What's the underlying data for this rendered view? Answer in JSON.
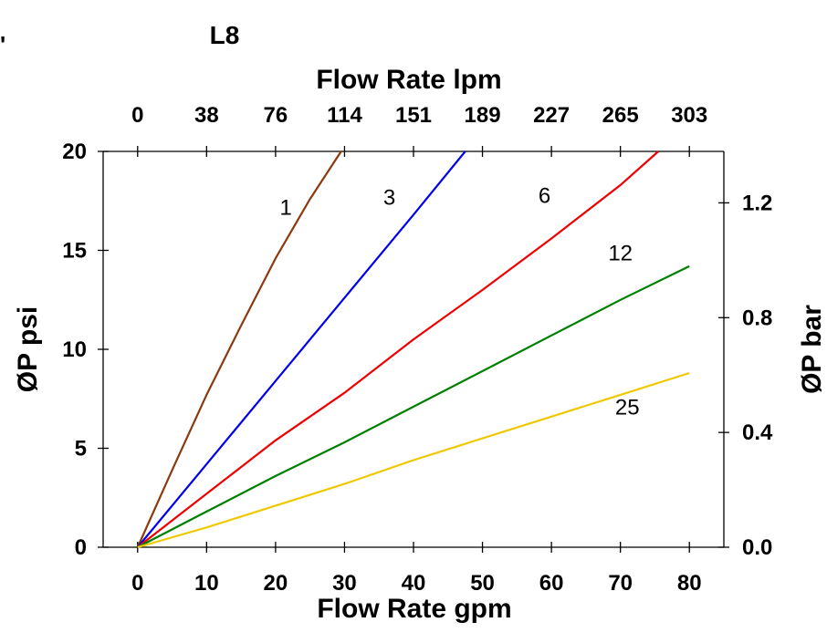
{
  "chart_data": {
    "type": "line",
    "title": "L8",
    "xlabel": "Flow Rate gpm",
    "x2label": "Flow Rate lpm",
    "ylabel": "ØP psi",
    "y2label": "ØP bar",
    "xlim": [
      -5,
      85
    ],
    "ylim": [
      0,
      20
    ],
    "y2lim": [
      0,
      1.379
    ],
    "xticks": [
      0,
      10,
      20,
      30,
      40,
      50,
      60,
      70,
      80
    ],
    "xtick_labels": [
      "0",
      "10",
      "20",
      "30",
      "40",
      "50",
      "60",
      "70",
      "80"
    ],
    "x2ticks": [
      0,
      10,
      20,
      30,
      40,
      50,
      60,
      70,
      80
    ],
    "x2tick_labels": [
      "0",
      "38",
      "76",
      "114",
      "151",
      "189",
      "227",
      "265",
      "303"
    ],
    "yticks": [
      0,
      5,
      10,
      15,
      20
    ],
    "ytick_labels": [
      "0",
      "5",
      "10",
      "15",
      "20"
    ],
    "y2ticks": [
      0,
      5.8,
      11.6,
      17.4
    ],
    "y2tick_labels": [
      "0.0",
      "0.4",
      "0.8",
      "1.2"
    ],
    "series": [
      {
        "name": "1",
        "color": "#8B3A0F",
        "x": [
          0,
          5,
          10,
          15,
          20,
          25,
          29.5
        ],
        "y": [
          0,
          3.9,
          7.7,
          11.2,
          14.6,
          17.6,
          20
        ],
        "label": {
          "text": "1",
          "x": 21.5,
          "y": 16.8
        }
      },
      {
        "name": "3",
        "color": "#0000EE",
        "x": [
          0,
          10,
          20,
          30,
          40,
          47.5
        ],
        "y": [
          0,
          4.2,
          8.4,
          12.6,
          16.8,
          20
        ],
        "label": {
          "text": "3",
          "x": 36.5,
          "y": 17.3
        }
      },
      {
        "name": "6",
        "color": "#EE0000",
        "x": [
          0,
          10,
          20,
          30,
          40,
          50,
          60,
          70,
          75.5
        ],
        "y": [
          0,
          2.7,
          5.4,
          7.8,
          10.5,
          13.0,
          15.6,
          18.3,
          20
        ],
        "label": {
          "text": "6",
          "x": 59,
          "y": 17.4
        }
      },
      {
        "name": "12",
        "color": "#008000",
        "x": [
          0,
          10,
          20,
          30,
          40,
          50,
          60,
          70,
          80
        ],
        "y": [
          0,
          1.8,
          3.6,
          5.3,
          7.1,
          8.9,
          10.7,
          12.5,
          14.2
        ],
        "label": {
          "text": "12",
          "x": 70,
          "y": 14.5
        }
      },
      {
        "name": "25",
        "color": "#F0C800",
        "x": [
          0,
          10,
          20,
          30,
          40,
          50,
          60,
          70,
          80
        ],
        "y": [
          0,
          1.0,
          2.1,
          3.2,
          4.4,
          5.5,
          6.6,
          7.7,
          8.8
        ],
        "label": {
          "text": "25",
          "x": 71,
          "y": 6.7
        }
      }
    ]
  },
  "top_left_mark": "'"
}
